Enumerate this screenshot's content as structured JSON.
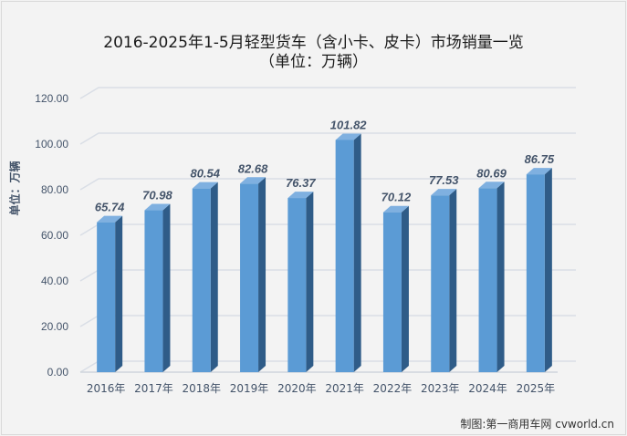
{
  "chart_data": {
    "type": "bar",
    "title": "2016-2025年1-5月轻型货车（含小卡、皮卡）市场销量一览",
    "subtitle": "（单位：万辆）",
    "xlabel": "",
    "ylabel": "单位：万辆",
    "categories": [
      "2016年",
      "2017年",
      "2018年",
      "2019年",
      "2020年",
      "2021年",
      "2022年",
      "2023年",
      "2024年",
      "2025年"
    ],
    "values": [
      65.74,
      70.98,
      80.54,
      82.68,
      76.37,
      101.82,
      70.12,
      77.53,
      80.69,
      86.75
    ],
    "value_labels": [
      "65.74",
      "70.98",
      "80.54",
      "82.68",
      "76.37",
      "101.82",
      "70.12",
      "77.53",
      "80.69",
      "86.75"
    ],
    "ylim": [
      0,
      120
    ],
    "yticks": [
      "0.00",
      "20.00",
      "40.00",
      "60.00",
      "80.00",
      "100.00",
      "120.00"
    ],
    "grid": true,
    "legend": "none",
    "colors": {
      "bar_front": "#5b9bd5",
      "bar_side": "#2f5c88",
      "bar_top": "#7fb0e0",
      "label": "#44546a"
    }
  },
  "credit": "制图:第一商用车网 cvworld.cn"
}
